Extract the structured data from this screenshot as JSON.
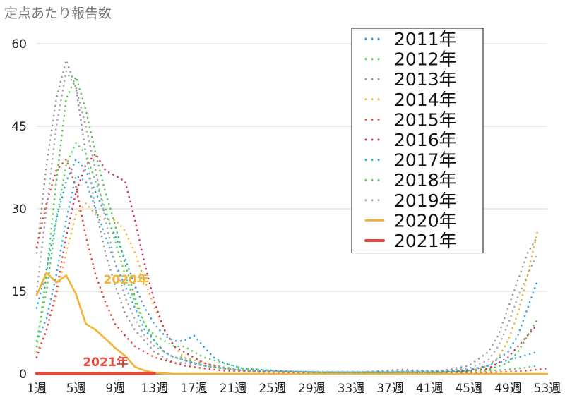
{
  "chart_data": {
    "type": "line",
    "ylabel": "定点あたり報告数",
    "ylim": [
      0,
      60
    ],
    "yticks": [
      "0",
      "15",
      "30",
      "45",
      "60"
    ],
    "xlim": [
      1,
      53
    ],
    "xticks": [
      "1週",
      "5週",
      "9週",
      "13週",
      "17週",
      "21週",
      "25週",
      "29週",
      "33週",
      "37週",
      "41週",
      "45週",
      "49週",
      "53週"
    ],
    "grid": "horizontal",
    "legend_position": "top-right",
    "annotations": [
      {
        "text": "2020年",
        "x": 7.8,
        "y": 16.4,
        "color": "#f2b233"
      },
      {
        "text": "2021年",
        "x": 5.7,
        "y": 1.4,
        "color": "#e8473a"
      }
    ],
    "series": [
      {
        "name": "2011年",
        "style": "dotted",
        "color": "#2f9be0",
        "x": [
          1,
          2,
          3,
          4,
          5,
          6,
          7,
          8,
          9,
          10,
          11,
          12,
          13,
          14,
          15,
          16,
          17,
          18,
          19,
          20,
          22,
          26,
          30,
          34,
          38,
          42,
          45,
          47,
          49,
          50,
          51,
          52
        ],
        "y": [
          12,
          19,
          28,
          35,
          39,
          37,
          33,
          29,
          25,
          21,
          16,
          12,
          9,
          7,
          6,
          6,
          7,
          5,
          3,
          2,
          1,
          0.5,
          0.3,
          0.3,
          0.3,
          0.3,
          0.6,
          1.5,
          4,
          7,
          12,
          17
        ]
      },
      {
        "name": "2012年",
        "style": "dotted",
        "color": "#4bc84b",
        "x": [
          1,
          2,
          3,
          4,
          5,
          6,
          7,
          8,
          9,
          10,
          11,
          12,
          13,
          14,
          15,
          16,
          17,
          18,
          20,
          22,
          26,
          30,
          34,
          38,
          42,
          45,
          47,
          49,
          50,
          51,
          52
        ],
        "y": [
          5,
          18,
          35,
          50,
          54,
          48,
          40,
          33,
          27,
          20,
          14,
          9,
          6,
          4,
          3,
          3,
          2,
          2,
          1.2,
          0.8,
          0.4,
          0.3,
          0.3,
          0.3,
          0.3,
          0.4,
          0.8,
          2,
          4,
          7,
          10
        ]
      },
      {
        "name": "2013年",
        "style": "dotted",
        "color": "#999999",
        "x": [
          1,
          2,
          3,
          4,
          5,
          6,
          7,
          8,
          9,
          10,
          11,
          12,
          13,
          14,
          15,
          16,
          18,
          20,
          22,
          26,
          30,
          34,
          38,
          42,
          45,
          47,
          48,
          49,
          50,
          51,
          52
        ],
        "y": [
          22,
          38,
          50,
          57,
          52,
          40,
          30,
          22,
          16,
          11,
          8,
          6,
          4,
          3,
          2,
          2,
          1.5,
          1,
          0.6,
          0.4,
          0.3,
          0.3,
          0.8,
          0.5,
          1.5,
          4,
          7,
          12,
          17,
          22,
          25
        ]
      },
      {
        "name": "2014年",
        "style": "dotted",
        "color": "#f2b233",
        "x": [
          1,
          2,
          3,
          4,
          5,
          6,
          7,
          8,
          9,
          10,
          11,
          12,
          13,
          14,
          15,
          16,
          18,
          20,
          22,
          26,
          30,
          34,
          38,
          42,
          45,
          47,
          48,
          49,
          50,
          51,
          52
        ],
        "y": [
          4,
          8,
          14,
          22,
          29,
          31,
          29,
          28,
          28,
          26,
          22,
          17,
          12,
          8,
          5,
          3,
          2,
          1,
          0.6,
          0.4,
          0.3,
          0.3,
          0.3,
          0.3,
          0.5,
          1.5,
          3,
          6,
          11,
          18,
          26
        ]
      },
      {
        "name": "2015年",
        "style": "dotted",
        "color": "#e8473a",
        "x": [
          1,
          2,
          3,
          4,
          5,
          6,
          7,
          8,
          9,
          10,
          11,
          12,
          13,
          14,
          15,
          16,
          18,
          20,
          22,
          26,
          30,
          34,
          38,
          42,
          45,
          47,
          49,
          50,
          51,
          52,
          53
        ],
        "y": [
          23,
          31,
          37,
          39,
          34,
          25,
          18,
          13,
          9,
          7,
          5,
          4,
          3,
          2.5,
          2,
          1.5,
          1,
          0.6,
          0.4,
          0.3,
          0.2,
          0.2,
          0.2,
          0.2,
          0.2,
          0.3,
          0.4,
          0.5,
          0.6,
          0.8,
          1
        ]
      },
      {
        "name": "2016年",
        "style": "dotted",
        "color": "#d0315f",
        "x": [
          1,
          2,
          3,
          4,
          5,
          6,
          7,
          8,
          9,
          10,
          11,
          12,
          13,
          14,
          15,
          16,
          17,
          18,
          20,
          22,
          26,
          30,
          34,
          38,
          42,
          45,
          47,
          48,
          49,
          50,
          51,
          52
        ],
        "y": [
          3,
          8,
          15,
          25,
          33,
          38,
          40,
          37,
          36,
          35,
          28,
          20,
          13,
          8,
          5,
          4,
          3,
          2,
          1,
          0.6,
          0.4,
          0.3,
          0.3,
          0.3,
          0.3,
          0.5,
          1,
          2,
          3,
          5,
          7,
          9
        ]
      },
      {
        "name": "2017年",
        "style": "dotted",
        "color": "#38a8e0",
        "x": [
          1,
          2,
          3,
          4,
          5,
          6,
          7,
          8,
          9,
          10,
          11,
          12,
          13,
          14,
          15,
          16,
          18,
          20,
          22,
          26,
          30,
          34,
          38,
          42,
          45,
          47,
          49,
          50,
          51,
          52
        ],
        "y": [
          6,
          10,
          18,
          28,
          36,
          35,
          30,
          25,
          20,
          16,
          12,
          8,
          6,
          4,
          3,
          2.5,
          1.5,
          1,
          0.6,
          0.4,
          0.3,
          0.3,
          0.4,
          0.5,
          0.8,
          1.5,
          2.5,
          3,
          3.5,
          4
        ]
      },
      {
        "name": "2018年",
        "style": "dotted",
        "color": "#5dd35d",
        "x": [
          1,
          2,
          3,
          4,
          5,
          6,
          7,
          8,
          9,
          10,
          11,
          12,
          13,
          14,
          15,
          16,
          18,
          20,
          22,
          26,
          30,
          34,
          38,
          42,
          45,
          47,
          49,
          50,
          51,
          52
        ],
        "y": [
          6,
          15,
          28,
          38,
          42,
          40,
          35,
          30,
          24,
          18,
          13,
          9,
          7,
          6,
          5,
          5,
          3,
          2,
          1,
          0.5,
          0.3,
          0.3,
          0.3,
          0.3,
          0.4,
          0.6,
          0.8,
          1,
          1.2,
          1.5
        ]
      },
      {
        "name": "2019年",
        "style": "dotted",
        "color": "#a8a8a8",
        "x": [
          1,
          2,
          3,
          4,
          5,
          6,
          7,
          8,
          9,
          10,
          11,
          12,
          13,
          14,
          15,
          16,
          18,
          20,
          22,
          26,
          30,
          34,
          38,
          42,
          45,
          47,
          48,
          49,
          50,
          51,
          52
        ],
        "y": [
          15,
          30,
          45,
          55,
          52,
          45,
          37,
          28,
          20,
          14,
          10,
          7,
          5,
          4,
          3,
          2.5,
          1.5,
          1,
          0.7,
          0.5,
          0.4,
          0.4,
          0.5,
          0.6,
          1,
          2.5,
          5,
          9,
          14,
          18,
          22
        ]
      },
      {
        "name": "2020年",
        "style": "solid",
        "color": "#f2b233",
        "x": [
          1,
          2,
          3,
          4,
          5,
          6,
          7,
          8,
          9,
          10,
          11,
          12,
          13,
          14,
          15,
          16,
          18,
          20,
          22,
          26,
          30,
          34,
          38,
          42,
          46,
          50,
          53
        ],
        "y": [
          14.3,
          18.4,
          16.6,
          17.9,
          14.5,
          9.1,
          8,
          6.4,
          4.7,
          3.3,
          1.3,
          0.6,
          0.2,
          0.1,
          0,
          0,
          0,
          0,
          0,
          0,
          0,
          0,
          0,
          0,
          0,
          0,
          0
        ]
      },
      {
        "name": "2021年",
        "style": "solid",
        "color": "#e8473a",
        "x": [
          1,
          2,
          3,
          4,
          5,
          6,
          7,
          8,
          9,
          10,
          11,
          12,
          13
        ],
        "y": [
          0.05,
          0.05,
          0.05,
          0.05,
          0.05,
          0.05,
          0.05,
          0.05,
          0.05,
          0.05,
          0.05,
          0.05,
          0.05
        ]
      }
    ]
  }
}
